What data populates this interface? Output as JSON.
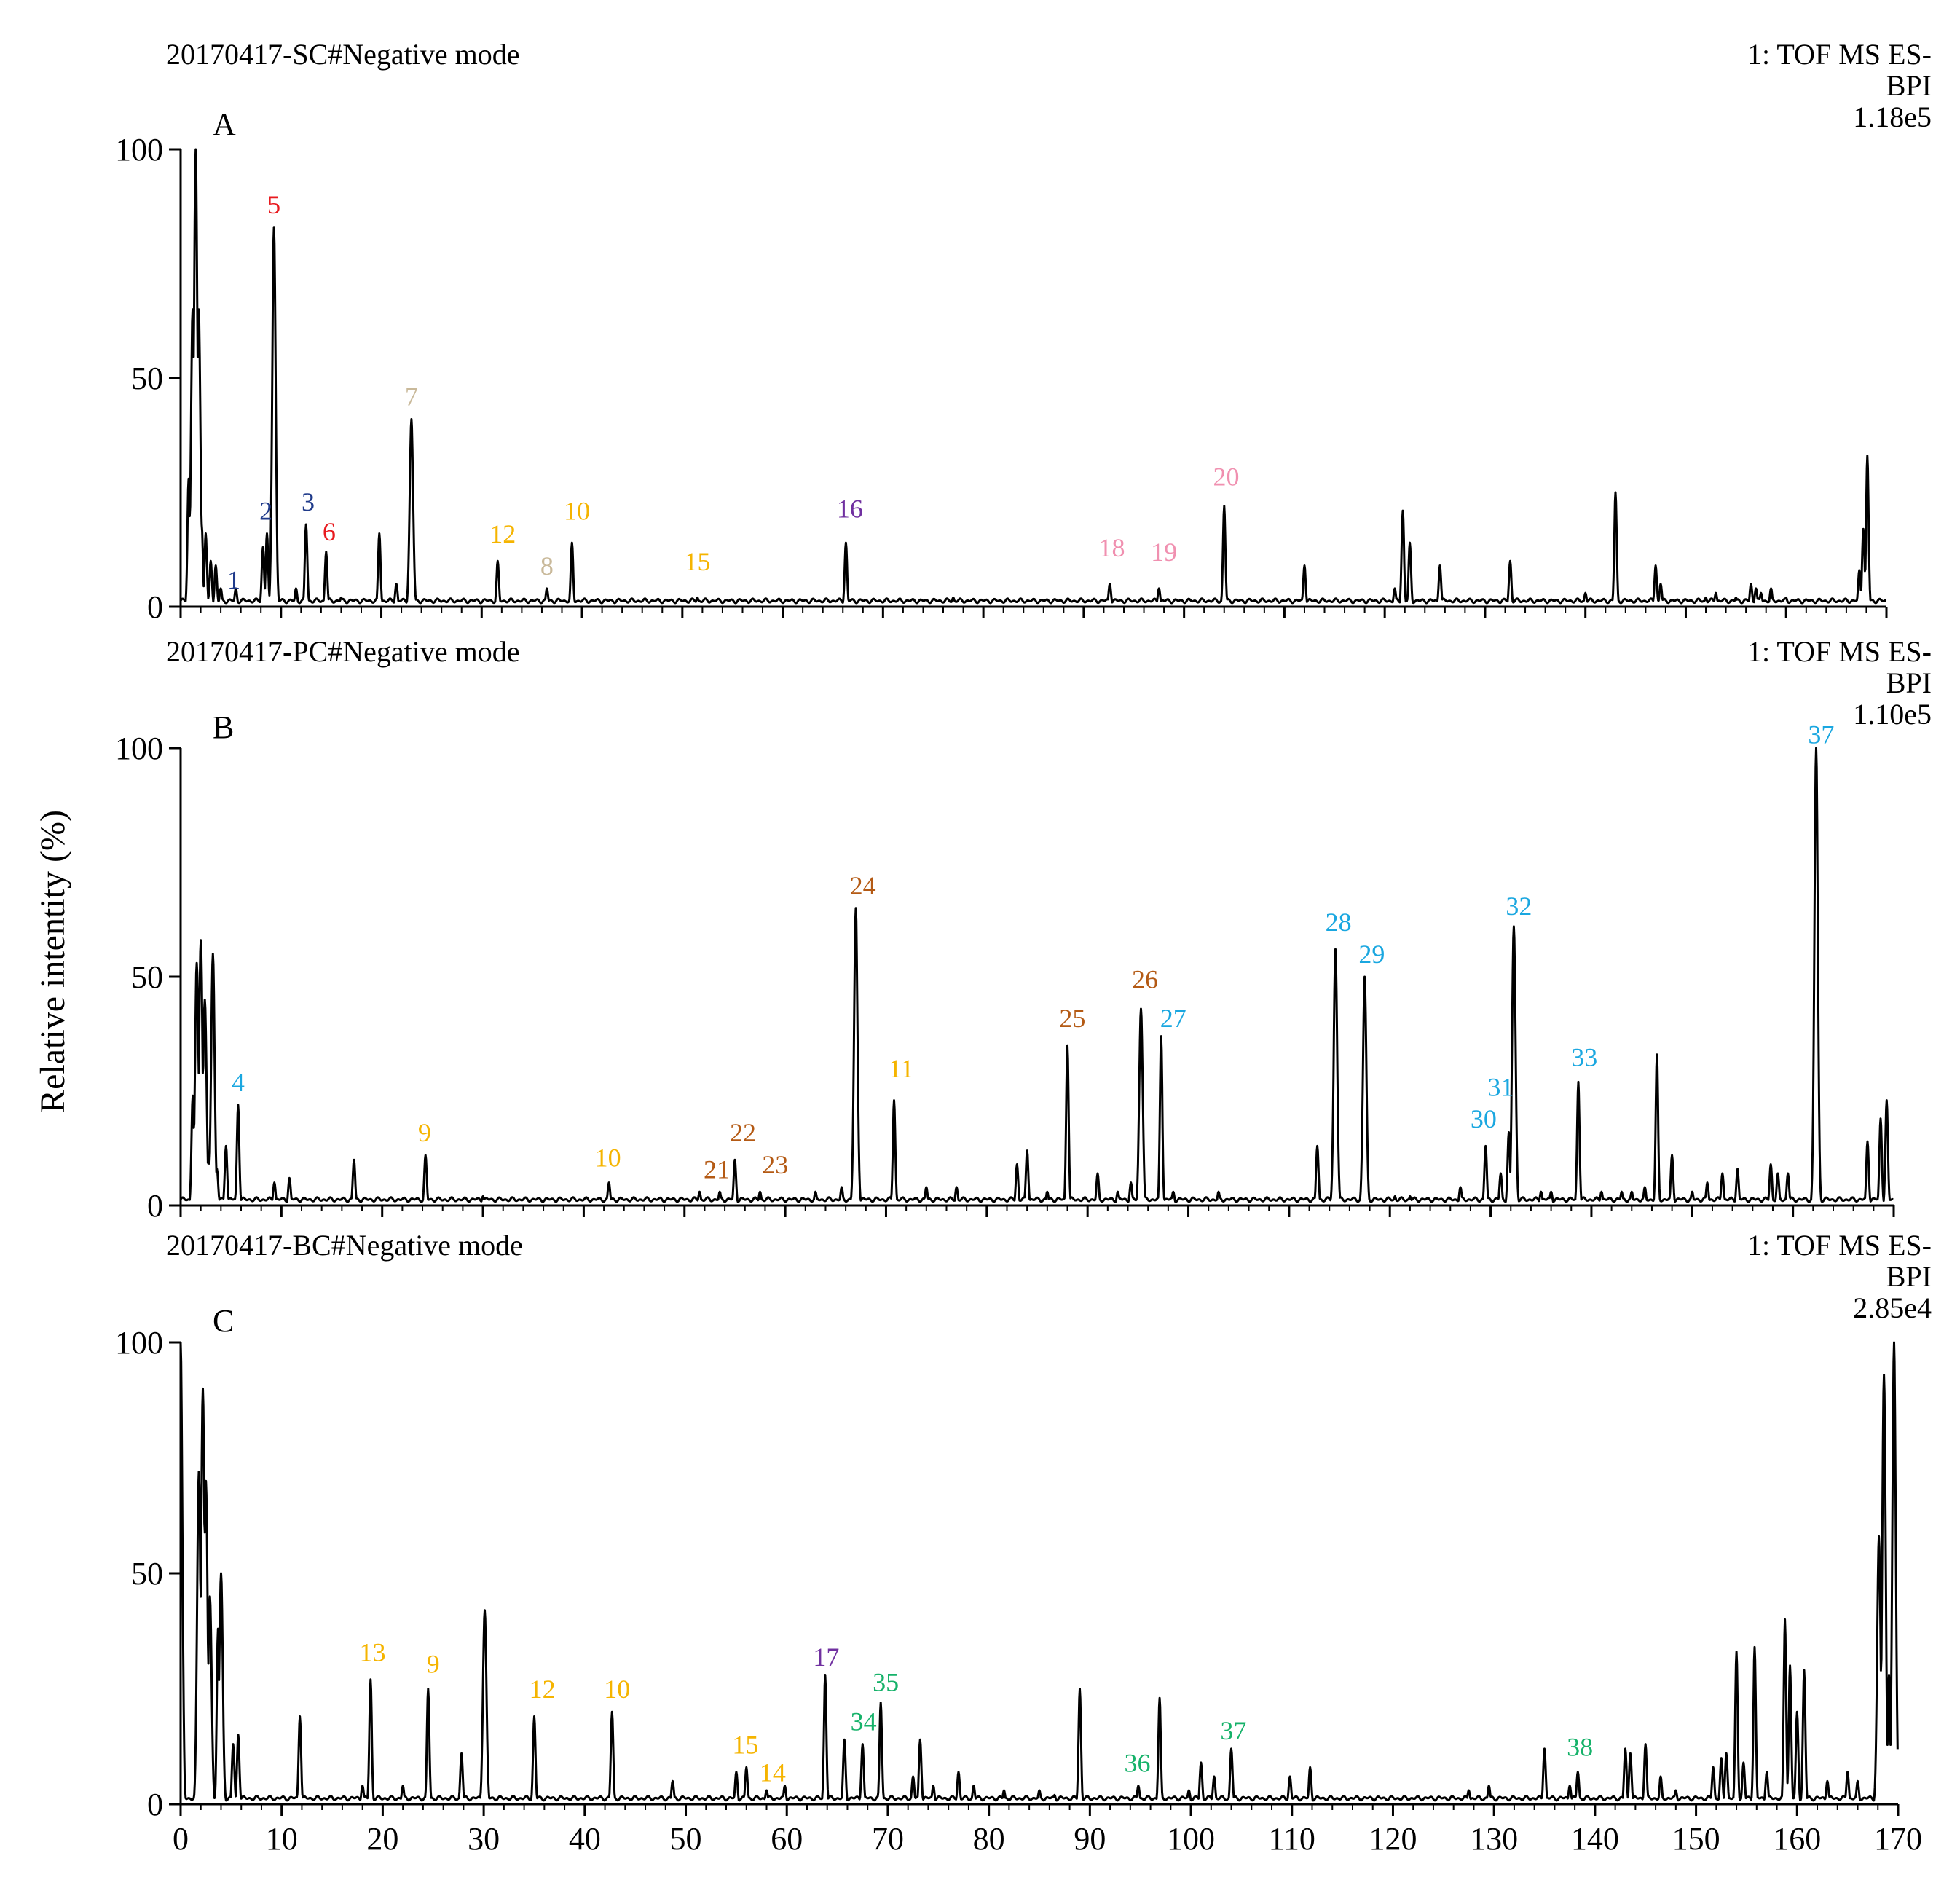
{
  "colors": {
    "trace": "#000000",
    "navy": "#1f3a8a",
    "red": "#e8191e",
    "tan": "#c9b99a",
    "gold": "#f5b400",
    "purple": "#7030a0",
    "pink": "#f090b0",
    "brown": "#b45a14",
    "sky": "#1aa7e0",
    "green": "#16b26a"
  },
  "y_axis_label": "Relative intentity (%)",
  "chart_data": [
    {
      "type": "line",
      "panel": "A",
      "header": "20170417-SC#Negative  mode",
      "detector": [
        "1: TOF MS ES-",
        "BPI",
        "1.18e5"
      ],
      "xlim": [
        0,
        170
      ],
      "ylim": [
        0,
        100
      ],
      "yticks": [
        0,
        50,
        100
      ],
      "series": [
        {
          "peaks": [
            [
              0.8,
              28
            ],
            [
              1.2,
              65
            ],
            [
              1.5,
              100
            ],
            [
              1.8,
              65
            ],
            [
              2.1,
              18
            ],
            [
              2.5,
              16
            ],
            [
              3.0,
              10
            ],
            [
              3.5,
              9
            ],
            [
              4.0,
              4
            ],
            [
              5.5,
              4
            ],
            [
              8.2,
              13
            ],
            [
              8.6,
              16
            ],
            [
              9.3,
              83
            ],
            [
              11.5,
              4
            ],
            [
              12.5,
              18
            ],
            [
              14.5,
              12
            ],
            [
              16.0,
              2
            ],
            [
              19.8,
              16
            ],
            [
              21.5,
              5
            ],
            [
              23.0,
              41
            ],
            [
              31.6,
              10
            ],
            [
              36.5,
              4
            ],
            [
              39.0,
              14
            ],
            [
              51.5,
              2
            ],
            [
              66.3,
              14
            ],
            [
              75.0,
              1.5
            ],
            [
              77.0,
              2
            ],
            [
              92.6,
              5
            ],
            [
              97.5,
              4
            ],
            [
              104.0,
              22
            ],
            [
              112.0,
              9
            ],
            [
              121.0,
              4
            ],
            [
              121.8,
              21
            ],
            [
              122.5,
              14
            ],
            [
              125.5,
              9
            ],
            [
              132.5,
              10
            ],
            [
              140.0,
              3
            ],
            [
              143.0,
              25
            ],
            [
              147.0,
              9
            ],
            [
              147.5,
              5
            ],
            [
              150.0,
              1.5
            ],
            [
              152.0,
              2
            ],
            [
              153.0,
              3
            ],
            [
              155.0,
              2
            ],
            [
              156.5,
              5
            ],
            [
              157.0,
              4
            ],
            [
              157.5,
              3
            ],
            [
              158.5,
              4
            ],
            [
              160.0,
              2
            ],
            [
              167.3,
              8
            ],
            [
              167.7,
              17
            ],
            [
              168.1,
              33
            ]
          ]
        }
      ],
      "labels": [
        {
          "text": "1",
          "x": 5.3,
          "y": 4,
          "color": "navy"
        },
        {
          "text": "2",
          "x": 8.5,
          "y": 19,
          "color": "navy"
        },
        {
          "text": "3",
          "x": 12.7,
          "y": 21,
          "color": "navy"
        },
        {
          "text": "5",
          "x": 9.3,
          "y": 86,
          "color": "red"
        },
        {
          "text": "6",
          "x": 14.8,
          "y": 14.5,
          "color": "red"
        },
        {
          "text": "7",
          "x": 23.0,
          "y": 44,
          "color": "tan"
        },
        {
          "text": "8",
          "x": 36.5,
          "y": 7,
          "color": "tan"
        },
        {
          "text": "12",
          "x": 32.1,
          "y": 14,
          "color": "gold"
        },
        {
          "text": "10",
          "x": 39.5,
          "y": 19,
          "color": "gold"
        },
        {
          "text": "15",
          "x": 51.5,
          "y": 8,
          "color": "gold"
        },
        {
          "text": "16",
          "x": 66.7,
          "y": 19.5,
          "color": "purple"
        },
        {
          "text": "18",
          "x": 92.8,
          "y": 11,
          "color": "pink"
        },
        {
          "text": "19",
          "x": 98.0,
          "y": 10,
          "color": "pink"
        },
        {
          "text": "20",
          "x": 104.2,
          "y": 26.5,
          "color": "pink"
        }
      ]
    },
    {
      "type": "line",
      "panel": "B",
      "header": "20170417-PC#Negative  mode",
      "detector": [
        "1: TOF MS ES-",
        "BPI",
        "1.10e5"
      ],
      "xlim": [
        0,
        170
      ],
      "ylim": [
        0,
        100
      ],
      "yticks": [
        0,
        50,
        100
      ],
      "series": [
        {
          "peaks": [
            [
              1.2,
              24
            ],
            [
              1.6,
              53
            ],
            [
              2.0,
              58
            ],
            [
              2.4,
              45
            ],
            [
              2.8,
              10
            ],
            [
              3.2,
              55
            ],
            [
              3.6,
              8
            ],
            [
              4.5,
              13
            ],
            [
              5.7,
              22
            ],
            [
              9.3,
              5
            ],
            [
              10.8,
              6
            ],
            [
              17.2,
              10
            ],
            [
              24.3,
              11
            ],
            [
              30.0,
              2
            ],
            [
              42.5,
              5
            ],
            [
              51.5,
              3
            ],
            [
              53.5,
              3
            ],
            [
              55.0,
              10
            ],
            [
              57.5,
              3
            ],
            [
              63.0,
              3
            ],
            [
              65.6,
              4
            ],
            [
              67.0,
              65
            ],
            [
              70.8,
              23
            ],
            [
              74.0,
              4
            ],
            [
              77.0,
              4
            ],
            [
              83.0,
              9
            ],
            [
              84.0,
              12
            ],
            [
              86.0,
              3
            ],
            [
              88.0,
              35
            ],
            [
              91.0,
              7
            ],
            [
              93.0,
              3
            ],
            [
              94.3,
              5
            ],
            [
              95.3,
              43
            ],
            [
              97.3,
              37
            ],
            [
              98.5,
              3
            ],
            [
              103.0,
              3
            ],
            [
              112.8,
              13
            ],
            [
              114.6,
              56
            ],
            [
              117.5,
              50
            ],
            [
              120.5,
              2
            ],
            [
              122.0,
              2
            ],
            [
              127.0,
              4
            ],
            [
              129.5,
              13
            ],
            [
              131.0,
              7
            ],
            [
              131.8,
              16
            ],
            [
              132.3,
              61
            ],
            [
              135.0,
              3
            ],
            [
              136.0,
              3
            ],
            [
              138.7,
              27
            ],
            [
              141.0,
              3
            ],
            [
              143.0,
              3
            ],
            [
              144.0,
              3
            ],
            [
              145.3,
              4
            ],
            [
              146.5,
              33
            ],
            [
              148.0,
              11
            ],
            [
              150.0,
              3
            ],
            [
              151.5,
              5
            ],
            [
              153.0,
              7
            ],
            [
              154.5,
              8
            ],
            [
              157.8,
              9
            ],
            [
              158.5,
              7
            ],
            [
              159.5,
              7
            ],
            [
              162.3,
              100
            ],
            [
              167.4,
              14
            ],
            [
              168.7,
              19
            ],
            [
              169.3,
              23
            ]
          ]
        }
      ],
      "labels": [
        {
          "text": "4",
          "x": 5.7,
          "y": 25,
          "color": "sky"
        },
        {
          "text": "9",
          "x": 24.2,
          "y": 14,
          "color": "gold"
        },
        {
          "text": "10",
          "x": 42.4,
          "y": 8.5,
          "color": "gold"
        },
        {
          "text": "21",
          "x": 53.2,
          "y": 6,
          "color": "brown"
        },
        {
          "text": "22",
          "x": 55.8,
          "y": 14,
          "color": "brown"
        },
        {
          "text": "23",
          "x": 59.0,
          "y": 7,
          "color": "brown"
        },
        {
          "text": "24",
          "x": 67.7,
          "y": 68,
          "color": "brown"
        },
        {
          "text": "11",
          "x": 71.5,
          "y": 28,
          "color": "gold"
        },
        {
          "text": "25",
          "x": 88.5,
          "y": 39,
          "color": "brown"
        },
        {
          "text": "26",
          "x": 95.7,
          "y": 47.5,
          "color": "brown"
        },
        {
          "text": "27",
          "x": 98.5,
          "y": 39,
          "color": "sky"
        },
        {
          "text": "28",
          "x": 114.9,
          "y": 60,
          "color": "sky"
        },
        {
          "text": "29",
          "x": 118.2,
          "y": 53,
          "color": "sky"
        },
        {
          "text": "30",
          "x": 129.3,
          "y": 17,
          "color": "sky"
        },
        {
          "text": "31",
          "x": 131.0,
          "y": 24,
          "color": "sky"
        },
        {
          "text": "32",
          "x": 132.8,
          "y": 63.5,
          "color": "sky"
        },
        {
          "text": "33",
          "x": 139.3,
          "y": 30.5,
          "color": "sky"
        },
        {
          "text": "37",
          "x": 162.8,
          "y": 101,
          "color": "sky"
        }
      ]
    },
    {
      "type": "line",
      "panel": "C",
      "header": "20170417-BC#Negative  mode",
      "detector": [
        "1: TOF MS ES-",
        "BPI",
        "2.85e4"
      ],
      "xlim": [
        0,
        170
      ],
      "ylim": [
        0,
        100
      ],
      "yticks": [
        0,
        50,
        100
      ],
      "xticks": [
        0,
        10,
        20,
        30,
        40,
        50,
        60,
        70,
        80,
        90,
        100,
        110,
        120,
        130,
        140,
        150,
        160,
        170
      ],
      "series": [
        {
          "peaks": [
            [
              0.0,
              100
            ],
            [
              1.8,
              72
            ],
            [
              2.2,
              90
            ],
            [
              2.5,
              70
            ],
            [
              2.9,
              45
            ],
            [
              3.7,
              38
            ],
            [
              4.0,
              50
            ],
            [
              5.2,
              13
            ],
            [
              5.7,
              15
            ],
            [
              11.8,
              19
            ],
            [
              18.0,
              4
            ],
            [
              18.8,
              27
            ],
            [
              22.0,
              4
            ],
            [
              24.5,
              25
            ],
            [
              27.8,
              11
            ],
            [
              30.1,
              42
            ],
            [
              35.0,
              19
            ],
            [
              42.7,
              20
            ],
            [
              48.7,
              5
            ],
            [
              55.0,
              7
            ],
            [
              56.0,
              8
            ],
            [
              58.0,
              3
            ],
            [
              59.8,
              4
            ],
            [
              63.8,
              28
            ],
            [
              65.7,
              14
            ],
            [
              67.5,
              13
            ],
            [
              69.3,
              22
            ],
            [
              72.5,
              6
            ],
            [
              73.2,
              14
            ],
            [
              74.5,
              4
            ],
            [
              77.0,
              7
            ],
            [
              78.5,
              4
            ],
            [
              81.5,
              3
            ],
            [
              85.0,
              3
            ],
            [
              86.5,
              2
            ],
            [
              89.0,
              25
            ],
            [
              94.8,
              4
            ],
            [
              96.9,
              23
            ],
            [
              99.8,
              3
            ],
            [
              101.0,
              9
            ],
            [
              102.3,
              6
            ],
            [
              104.0,
              12
            ],
            [
              109.8,
              6
            ],
            [
              111.8,
              8
            ],
            [
              127.5,
              3
            ],
            [
              129.5,
              4
            ],
            [
              135.0,
              12
            ],
            [
              137.5,
              4
            ],
            [
              138.3,
              7
            ],
            [
              143.0,
              12
            ],
            [
              143.5,
              11
            ],
            [
              145.0,
              13
            ],
            [
              146.5,
              6
            ],
            [
              148.0,
              3
            ],
            [
              151.7,
              8
            ],
            [
              152.5,
              10
            ],
            [
              153.0,
              11
            ],
            [
              154.0,
              33
            ],
            [
              154.7,
              9
            ],
            [
              155.8,
              34
            ],
            [
              157.0,
              7
            ],
            [
              158.8,
              40
            ],
            [
              159.3,
              30
            ],
            [
              160.0,
              20
            ],
            [
              160.7,
              29
            ],
            [
              163.0,
              5
            ],
            [
              165.0,
              7
            ],
            [
              166.0,
              5
            ],
            [
              168.1,
              58
            ],
            [
              168.6,
              93
            ],
            [
              169.1,
              28
            ],
            [
              169.6,
              100
            ],
            [
              170.0,
              3
            ]
          ]
        }
      ],
      "labels": [
        {
          "text": "13",
          "x": 19.0,
          "y": 31,
          "color": "gold"
        },
        {
          "text": "9",
          "x": 25.0,
          "y": 28.5,
          "color": "gold"
        },
        {
          "text": "12",
          "x": 35.8,
          "y": 23,
          "color": "gold"
        },
        {
          "text": "10",
          "x": 43.2,
          "y": 23,
          "color": "gold"
        },
        {
          "text": "15",
          "x": 55.9,
          "y": 11,
          "color": "gold"
        },
        {
          "text": "14",
          "x": 58.6,
          "y": 5,
          "color": "gold"
        },
        {
          "text": "17",
          "x": 63.9,
          "y": 30,
          "color": "purple"
        },
        {
          "text": "34",
          "x": 67.6,
          "y": 16,
          "color": "green"
        },
        {
          "text": "35",
          "x": 69.8,
          "y": 24.5,
          "color": "green"
        },
        {
          "text": "36",
          "x": 94.7,
          "y": 7,
          "color": "green"
        },
        {
          "text": "37",
          "x": 104.2,
          "y": 14,
          "color": "green"
        },
        {
          "text": "38",
          "x": 138.5,
          "y": 10.5,
          "color": "green"
        }
      ]
    }
  ]
}
